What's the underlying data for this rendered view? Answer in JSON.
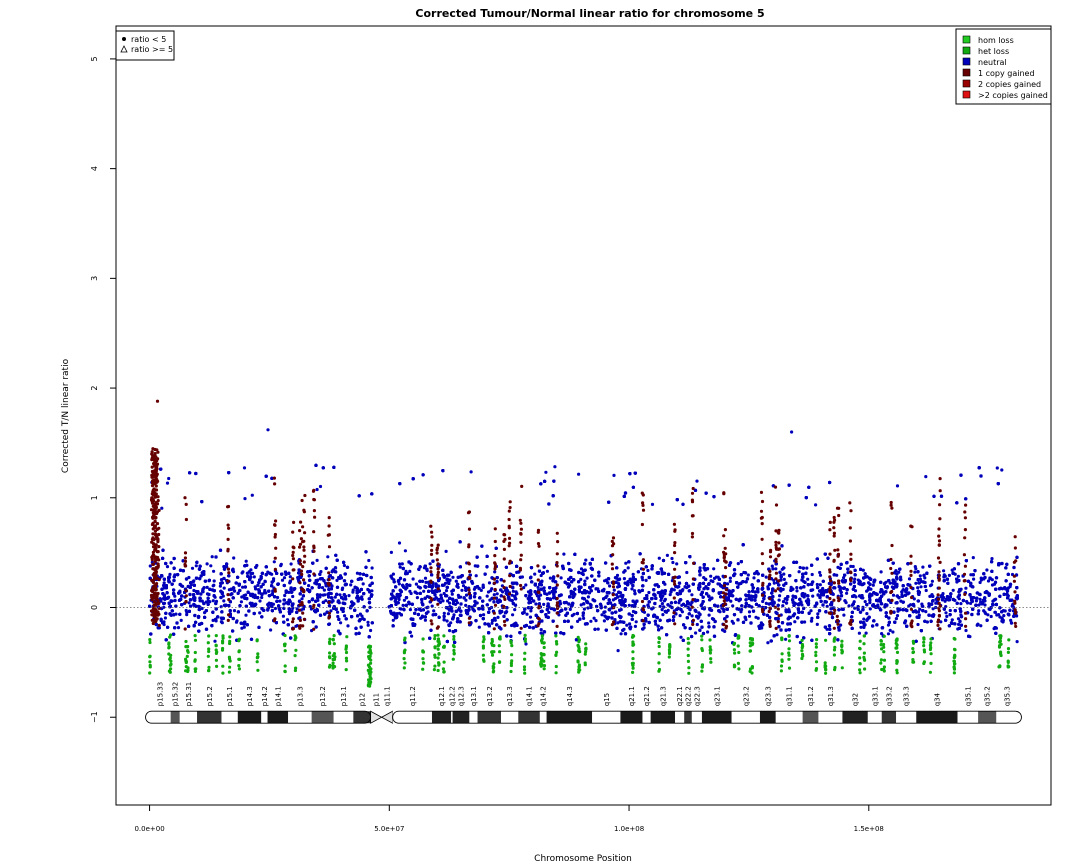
{
  "chart_data": {
    "type": "scatter",
    "title": "Corrected Tumour/Normal linear ratio for chromosome  5",
    "xlabel": "Chromosome Position",
    "ylabel": "Corrected T/N linear ratio",
    "xlim": [
      -7000000,
      188000000
    ],
    "ylim": [
      -1.8,
      5.3
    ],
    "xticks": [
      0,
      50000000,
      100000000,
      150000000
    ],
    "xtick_labels": [
      "0.0e+00",
      "5.0e+07",
      "1.0e+08",
      "1.5e+08"
    ],
    "yticks": [
      -1,
      0,
      1,
      2,
      3,
      4,
      5
    ],
    "ytick_labels": [
      "−1",
      "0",
      "1",
      "2",
      "3",
      "4",
      "5"
    ],
    "reference_line_y": 0,
    "chromosome_length": 181000000,
    "centromere": [
      46500000,
      50000000
    ],
    "shape_legend": {
      "placement": "top-left",
      "items": [
        {
          "label": "ratio < 5",
          "symbol": "filled-circle"
        },
        {
          "label": "ratio >= 5",
          "symbol": "open-triangle"
        }
      ]
    },
    "legend": {
      "placement": "top-right",
      "items": [
        {
          "label": "hom loss",
          "color": "#22CC22"
        },
        {
          "label": "het loss",
          "color": "#11AA11"
        },
        {
          "label": "neutral",
          "color": "#0000BB"
        },
        {
          "label": "1 copy gained",
          "color": "#660000"
        },
        {
          "label": "2 copies gained",
          "color": "#990000"
        },
        {
          "label": ">2 copies gained",
          "color": "#DD1111"
        }
      ]
    },
    "series": [
      {
        "name": "neutral",
        "color": "#0000BB",
        "band": {
          "low": -0.55,
          "high": 0.75,
          "max_outlier": 1.62
        }
      },
      {
        "name": "1 copy gained",
        "color": "#660000",
        "peak_at_start": 1.88
      },
      {
        "name": "het loss",
        "color": "#11AA11",
        "min": -0.72
      }
    ],
    "cytobands": [
      {
        "name": "p15.33",
        "start": 0,
        "end": 4400000,
        "stain": "gneg"
      },
      {
        "name": "p15.32",
        "start": 4400000,
        "end": 6300000,
        "stain": "gpos25"
      },
      {
        "name": "p15.31",
        "start": 6300000,
        "end": 9900000,
        "stain": "gneg"
      },
      {
        "name": "p15.2",
        "start": 9900000,
        "end": 15000000,
        "stain": "gpos50"
      },
      {
        "name": "p15.1",
        "start": 15000000,
        "end": 18400000,
        "stain": "gneg"
      },
      {
        "name": "p14.3",
        "start": 18400000,
        "end": 23300000,
        "stain": "gpos100"
      },
      {
        "name": "p14.2",
        "start": 23300000,
        "end": 24600000,
        "stain": "gneg"
      },
      {
        "name": "p14.1",
        "start": 24600000,
        "end": 28900000,
        "stain": "gpos100"
      },
      {
        "name": "p13.3",
        "start": 28900000,
        "end": 33800000,
        "stain": "gneg"
      },
      {
        "name": "p13.2",
        "start": 33800000,
        "end": 38400000,
        "stain": "gpos25"
      },
      {
        "name": "p13.1",
        "start": 38400000,
        "end": 42500000,
        "stain": "gneg"
      },
      {
        "name": "p12",
        "start": 42500000,
        "end": 46100000,
        "stain": "gpos50"
      },
      {
        "name": "p11",
        "start": 46100000,
        "end": 48400000,
        "stain": "acen"
      },
      {
        "name": "q11.1",
        "start": 48400000,
        "end": 50700000,
        "stain": "acen"
      },
      {
        "name": "q11.2",
        "start": 50700000,
        "end": 58900000,
        "stain": "gneg"
      },
      {
        "name": "q12.1",
        "start": 58900000,
        "end": 62900000,
        "stain": "gpos75"
      },
      {
        "name": "q12.2",
        "start": 62900000,
        "end": 63200000,
        "stain": "gneg"
      },
      {
        "name": "q12.3",
        "start": 63200000,
        "end": 66700000,
        "stain": "gpos75"
      },
      {
        "name": "q13.1",
        "start": 66700000,
        "end": 68400000,
        "stain": "gneg"
      },
      {
        "name": "q13.2",
        "start": 68400000,
        "end": 73300000,
        "stain": "gpos50"
      },
      {
        "name": "q13.3",
        "start": 73300000,
        "end": 76900000,
        "stain": "gneg"
      },
      {
        "name": "q14.1",
        "start": 76900000,
        "end": 81400000,
        "stain": "gpos50"
      },
      {
        "name": "q14.2",
        "start": 81400000,
        "end": 82800000,
        "stain": "gneg"
      },
      {
        "name": "q14.3",
        "start": 82800000,
        "end": 92300000,
        "stain": "gpos100"
      },
      {
        "name": "q15",
        "start": 92300000,
        "end": 98200000,
        "stain": "gneg"
      },
      {
        "name": "q21.1",
        "start": 98200000,
        "end": 102800000,
        "stain": "gpos100"
      },
      {
        "name": "q21.2",
        "start": 102800000,
        "end": 104500000,
        "stain": "gneg"
      },
      {
        "name": "q21.3",
        "start": 104500000,
        "end": 109600000,
        "stain": "gpos100"
      },
      {
        "name": "q22.1",
        "start": 109600000,
        "end": 111500000,
        "stain": "gneg"
      },
      {
        "name": "q22.2",
        "start": 111500000,
        "end": 113100000,
        "stain": "gpos50"
      },
      {
        "name": "q22.3",
        "start": 113100000,
        "end": 115200000,
        "stain": "gneg"
      },
      {
        "name": "q23.1",
        "start": 115200000,
        "end": 121400000,
        "stain": "gpos100"
      },
      {
        "name": "q23.2",
        "start": 121400000,
        "end": 127300000,
        "stain": "gneg"
      },
      {
        "name": "q23.3",
        "start": 127300000,
        "end": 130600000,
        "stain": "gpos100"
      },
      {
        "name": "q31.1",
        "start": 130600000,
        "end": 136200000,
        "stain": "gneg"
      },
      {
        "name": "q31.2",
        "start": 136200000,
        "end": 139500000,
        "stain": "gpos25"
      },
      {
        "name": "q31.3",
        "start": 139500000,
        "end": 144500000,
        "stain": "gneg"
      },
      {
        "name": "q32",
        "start": 144500000,
        "end": 149800000,
        "stain": "gpos75"
      },
      {
        "name": "q33.1",
        "start": 149800000,
        "end": 152700000,
        "stain": "gneg"
      },
      {
        "name": "q33.2",
        "start": 152700000,
        "end": 155700000,
        "stain": "gpos50"
      },
      {
        "name": "q33.3",
        "start": 155700000,
        "end": 159900000,
        "stain": "gneg"
      },
      {
        "name": "q34",
        "start": 159900000,
        "end": 168500000,
        "stain": "gpos100"
      },
      {
        "name": "q35.1",
        "start": 168500000,
        "end": 172800000,
        "stain": "gneg"
      },
      {
        "name": "q35.2",
        "start": 172800000,
        "end": 176600000,
        "stain": "gpos25"
      },
      {
        "name": "q35.3",
        "start": 176600000,
        "end": 181000000,
        "stain": "gneg"
      }
    ]
  }
}
